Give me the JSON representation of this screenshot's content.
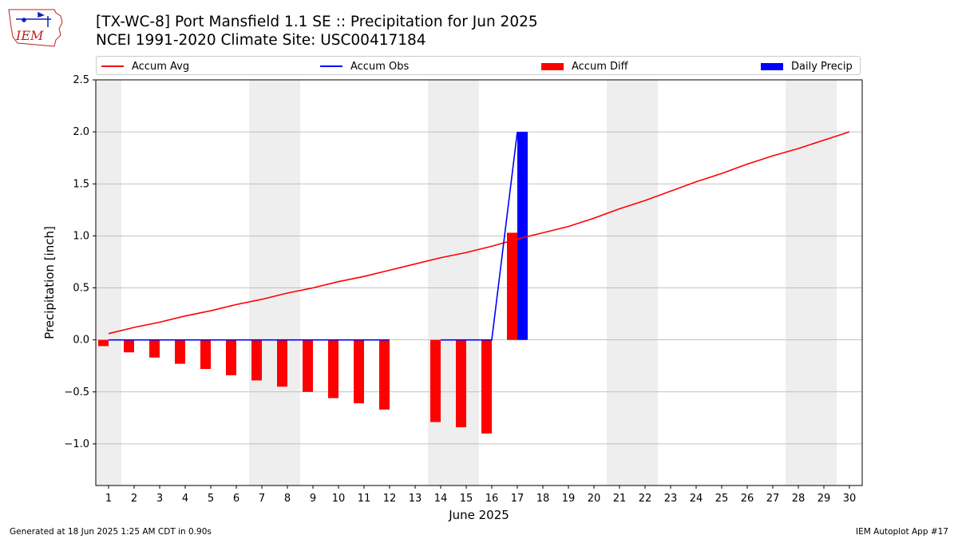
{
  "header": {
    "title_line1": "[TX-WC-8] Port Mansfield 1.1 SE :: Precipitation for Jun 2025",
    "title_line2": "NCEI 1991-2020 Climate Site: USC00417184"
  },
  "logo": {
    "text": "IEM",
    "icon": "iem-iowa-logo-icon"
  },
  "footer": {
    "generated": "Generated at 18 Jun 2025 1:25 AM CDT in 0.90s",
    "app": "IEM Autoplot App #17"
  },
  "colors": {
    "avg": "#ff0000",
    "obs": "#0000ff",
    "diff": "#ff0000",
    "daily": "#0000ff",
    "weekend_shade": "#eeeeee",
    "grid": "#b0b0b0"
  },
  "chart_data": {
    "type": "line",
    "title": "[TX-WC-8] Port Mansfield 1.1 SE :: Precipitation for Jun 2025",
    "subtitle": "NCEI 1991-2020 Climate Site: USC00417184",
    "xlabel": "June 2025",
    "ylabel": "Precipitation [inch]",
    "ylim": [
      -1.4,
      2.5
    ],
    "yticks": [
      -1.0,
      -0.5,
      0.0,
      0.5,
      1.0,
      1.5,
      2.0,
      2.5
    ],
    "ytick_labels": [
      "−1.0",
      "−0.5",
      "0.0",
      "0.5",
      "1.0",
      "1.5",
      "2.0",
      "2.5"
    ],
    "x": [
      1,
      2,
      3,
      4,
      5,
      6,
      7,
      8,
      9,
      10,
      11,
      12,
      13,
      14,
      15,
      16,
      17,
      18,
      19,
      20,
      21,
      22,
      23,
      24,
      25,
      26,
      27,
      28,
      29,
      30
    ],
    "xtick_labels": [
      "1",
      "2",
      "3",
      "4",
      "5",
      "6",
      "7",
      "8",
      "9",
      "10",
      "11",
      "12",
      "13",
      "14",
      "15",
      "16",
      "17",
      "18",
      "19",
      "20",
      "21",
      "22",
      "23",
      "24",
      "25",
      "26",
      "27",
      "28",
      "29",
      "30"
    ],
    "grid": "y-major",
    "legend_placement": "top, above plot area",
    "weekends": [
      1,
      7,
      8,
      14,
      15,
      21,
      22,
      28,
      29
    ],
    "series": [
      {
        "name": "Accum Avg",
        "kind": "line",
        "x": [
          1,
          2,
          3,
          4,
          5,
          6,
          7,
          8,
          9,
          10,
          11,
          12,
          13,
          14,
          15,
          16,
          17,
          18,
          19,
          20,
          21,
          22,
          23,
          24,
          25,
          26,
          27,
          28,
          29,
          30
        ],
        "values": [
          0.06,
          0.12,
          0.17,
          0.23,
          0.28,
          0.34,
          0.39,
          0.45,
          0.5,
          0.56,
          0.61,
          0.67,
          0.73,
          0.79,
          0.84,
          0.9,
          0.97,
          1.03,
          1.09,
          1.17,
          1.26,
          1.34,
          1.43,
          1.52,
          1.6,
          1.69,
          1.77,
          1.84,
          1.92,
          2.0
        ]
      },
      {
        "name": "Accum Obs",
        "kind": "line",
        "segments": [
          {
            "x": [
              1,
              2,
              3,
              4,
              5,
              6,
              7,
              8,
              9,
              10,
              11,
              12
            ],
            "values": [
              0,
              0,
              0,
              0,
              0,
              0,
              0,
              0,
              0,
              0,
              0,
              0
            ]
          },
          {
            "x": [
              14,
              15,
              16,
              17
            ],
            "values": [
              0,
              0,
              0,
              2.0
            ]
          }
        ]
      },
      {
        "name": "Accum Diff",
        "kind": "bar",
        "x": [
          1,
          2,
          3,
          4,
          5,
          6,
          7,
          8,
          9,
          10,
          11,
          12,
          14,
          15,
          16,
          17
        ],
        "values": [
          -0.06,
          -0.12,
          -0.17,
          -0.23,
          -0.28,
          -0.34,
          -0.39,
          -0.45,
          -0.5,
          -0.56,
          -0.61,
          -0.67,
          -0.79,
          -0.84,
          -0.9,
          1.03
        ]
      },
      {
        "name": "Daily Precip",
        "kind": "bar",
        "x": [
          1,
          2,
          3,
          4,
          5,
          6,
          7,
          8,
          9,
          10,
          11,
          12,
          14,
          15,
          16,
          17
        ],
        "values": [
          0,
          0,
          0,
          0,
          0,
          0,
          0,
          0,
          0,
          0,
          0,
          0,
          0,
          0,
          0,
          2.0
        ]
      }
    ]
  }
}
